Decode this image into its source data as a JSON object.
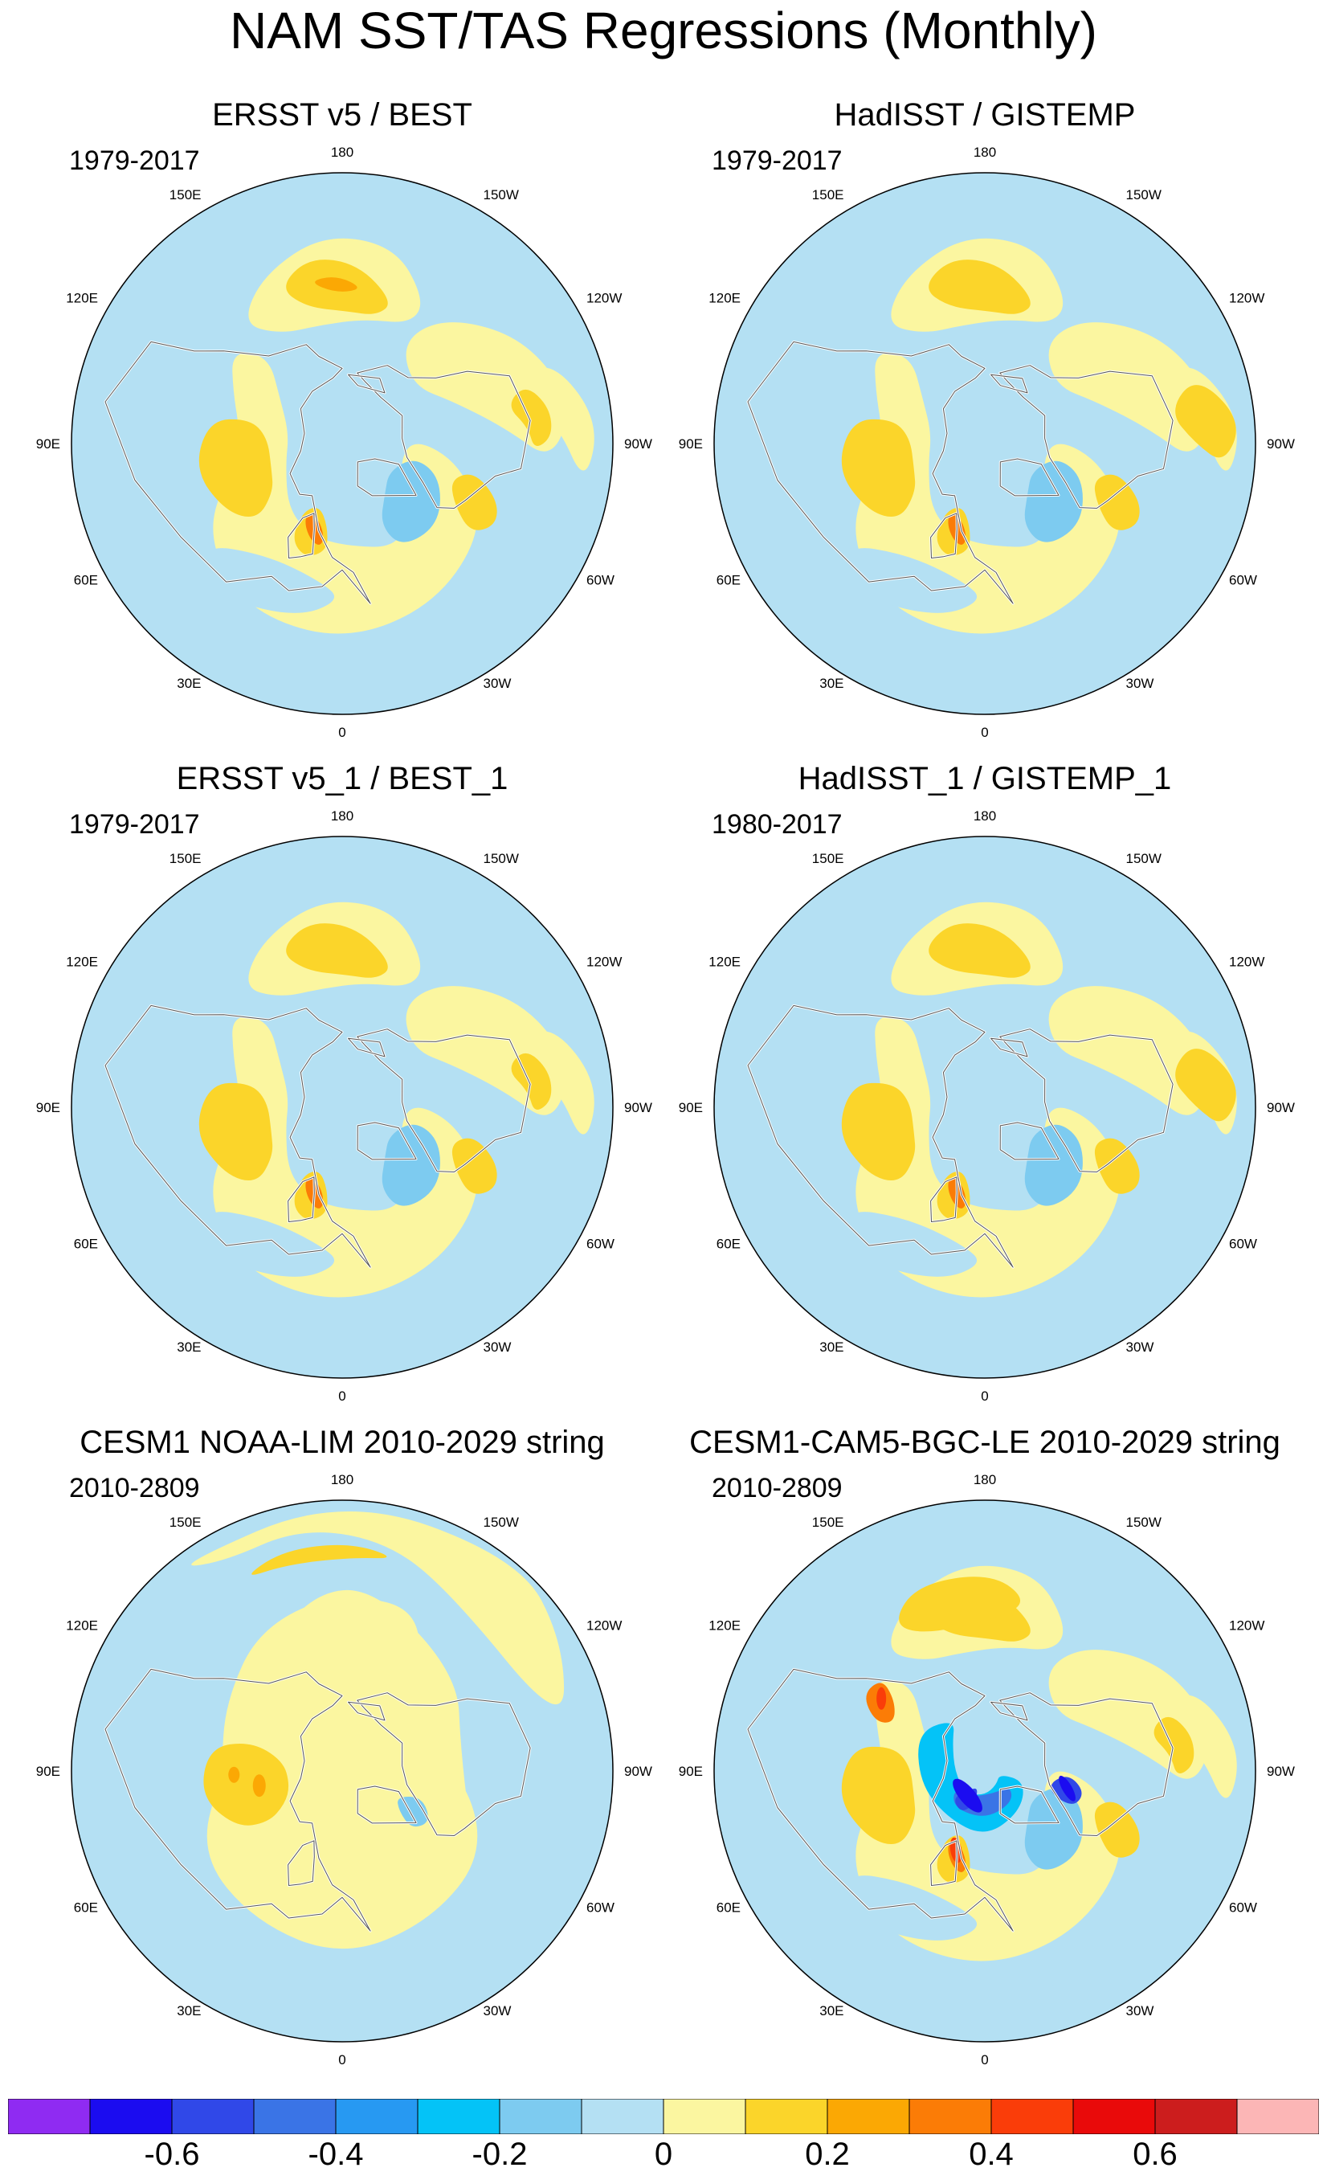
{
  "figure": {
    "title": "NAM SST/TAS Regressions (Monthly)"
  },
  "lon_labels": [
    "180",
    "150E",
    "120E",
    "90E",
    "60E",
    "30E",
    "0",
    "30W",
    "60W",
    "90W",
    "120W",
    "150W"
  ],
  "panels": [
    {
      "title": "ERSST v5 / BEST",
      "period": "1979-2017",
      "pattern": "obs"
    },
    {
      "title": "HadISST / GISTEMP",
      "period": "1979-2017",
      "pattern": "obs"
    },
    {
      "title": "ERSST v5_1 / BEST_1",
      "period": "1979-2017",
      "pattern": "obs"
    },
    {
      "title": "HadISST_1 / GISTEMP_1",
      "period": "1980-2017",
      "pattern": "obs"
    },
    {
      "title": "CESM1 NOAA-LIM 2010-2029 string",
      "period": "2010-2809",
      "pattern": "lim"
    },
    {
      "title": "CESM1-CAM5-BGC-LE 2010-2029 string",
      "period": "2010-2809",
      "pattern": "le"
    }
  ],
  "colorbar": {
    "colors": [
      "#8f2bf2",
      "#1b0cf0",
      "#3048e8",
      "#3a74e6",
      "#2799f2",
      "#04c3f7",
      "#7dcbf0",
      "#b4e0f3",
      "#fbf6a0",
      "#fbd52a",
      "#fba804",
      "#fb7c06",
      "#fa3d09",
      "#e90a0a",
      "#cc1d1d",
      "#fcb6b6"
    ],
    "labels": [
      "-0.6",
      "-0.4",
      "-0.2",
      "0",
      "0.2",
      "0.4",
      "0.6"
    ],
    "label_values": [
      -0.6,
      -0.4,
      -0.2,
      0,
      0.2,
      0.4,
      0.6
    ],
    "bounds": [
      -0.7,
      -0.6,
      -0.5,
      -0.4,
      -0.3,
      -0.2,
      -0.1,
      0,
      0.1,
      0.2,
      0.3,
      0.4,
      0.5,
      0.6,
      0.7
    ]
  }
}
